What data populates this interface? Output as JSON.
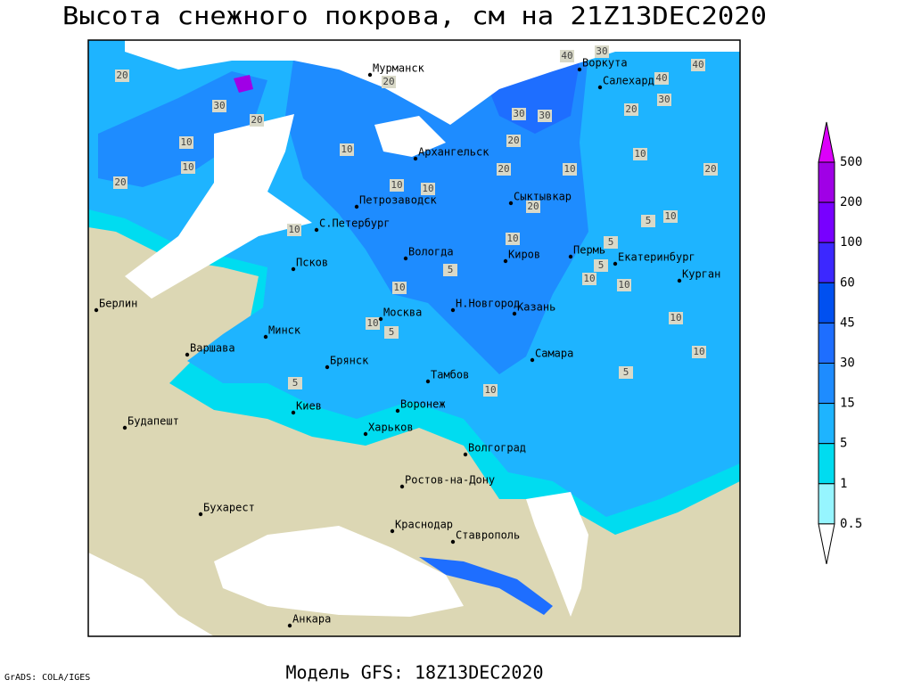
{
  "title": "Высота снежного покрова, см на 21Z13DEC2020",
  "footer": "Модель GFS: 18Z13DEC2020",
  "credit": "GrADS: COLA/IGES",
  "cities": [
    "Мурманск",
    "Воркута",
    "Салехард",
    "Архангельск",
    "Сыктывкар",
    "Петрозаводск",
    "С.Петербург",
    "Псков",
    "Вологда",
    "Киров",
    "Пермь",
    "Екатеринбург",
    "Курган",
    "Берлин",
    "Н.Новгород",
    "Казань",
    "Москва",
    "Минск",
    "Варшава",
    "Самара",
    "Брянск",
    "Тамбов",
    "Киев",
    "Воронеж",
    "Будапешт",
    "Харьков",
    "Волгоград",
    "Ростов-на-Дону",
    "Бухарест",
    "Краснодар",
    "Ставрополь",
    "Анкара"
  ],
  "contour_labels": [
    20,
    40,
    30,
    40,
    40,
    20,
    30,
    20,
    30,
    30,
    20,
    20,
    10,
    30,
    10,
    20,
    10,
    20,
    10,
    10,
    20,
    10,
    5,
    10,
    20,
    5,
    10,
    10,
    5,
    10,
    10,
    5,
    10,
    10,
    10,
    5,
    10,
    10,
    5,
    5,
    10
  ],
  "legend": {
    "levels": [
      500,
      200,
      100,
      60,
      45,
      30,
      15,
      5,
      1,
      0.5
    ],
    "colors": [
      "#dc00fa",
      "#a000e6",
      "#7800ff",
      "#3c28ff",
      "#0050f0",
      "#1e6eff",
      "#1e8cff",
      "#1eb4ff",
      "#00dcf0",
      "#96f5ff",
      "#ffffff"
    ]
  }
}
